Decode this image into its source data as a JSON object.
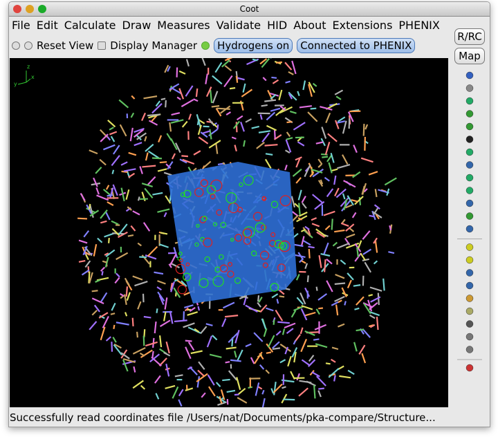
{
  "window": {
    "title": "Coot"
  },
  "menu": [
    "File",
    "Edit",
    "Calculate",
    "Draw",
    "Measures",
    "Validate",
    "HID",
    "About",
    "Extensions",
    "PHENIX"
  ],
  "toolbar": {
    "reset_view": "Reset View",
    "display_manager": "Display Manager",
    "hydrogens": "Hydrogens on",
    "phenix": "Connected to PHENIX"
  },
  "side_buttons": [
    "R/RC",
    "Map"
  ],
  "axes_labels": [
    "z",
    "y",
    "x"
  ],
  "status": "Successfully read coordinates file /Users/nat/Documents/pka-compare/Structure..."
}
